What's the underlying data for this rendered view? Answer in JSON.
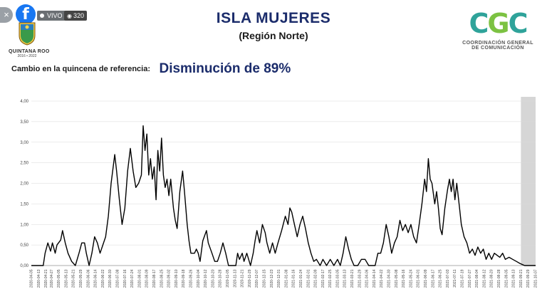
{
  "overlay": {
    "close_symbol": "×",
    "facebook_letter": "f",
    "live_label": "VIVO",
    "viewers": "320"
  },
  "logo_left": {
    "name": "QUINTANA ROO",
    "years": "2016 • 2022"
  },
  "header": {
    "title": "ISLA MUJERES",
    "subtitle": "(Región Norte)"
  },
  "logo_right": {
    "letters": [
      "C",
      "G",
      "C"
    ],
    "line1": "COORDINACIÓN GENERAL",
    "line2": "DE COMUNICACIÓN"
  },
  "change": {
    "label": "Cambio en la quincena de referencia:",
    "value": "Disminución de 89%"
  },
  "colors": {
    "title": "#1b2c6b",
    "line": "#000000",
    "grid": "#d9d9d9",
    "shade": "#d6d6d6",
    "facebook": "#1877f2"
  },
  "chart_data": {
    "type": "line",
    "title": "",
    "xlabel": "",
    "ylabel": "",
    "ylim": [
      0,
      4
    ],
    "y_ticks": [
      "0.00",
      "0.50",
      "1.00",
      "1.50",
      "2.00",
      "2.50",
      "3.00",
      "3.50",
      "4.00"
    ],
    "grid": "horizontal",
    "x_start": "2020-04-05",
    "x_end": "2021-10-07",
    "x_ticks": [
      "2020-04-05",
      "2020-04-13",
      "2020-04-21",
      "2020-04-27",
      "2020-05-05",
      "2020-05-13",
      "2020-05-21",
      "2020-05-29",
      "2020-06-06",
      "2020-06-14",
      "2020-06-22",
      "2020-06-30",
      "2020-07-08",
      "2020-07-16",
      "2020-07-24",
      "2020-08-01",
      "2020-08-09",
      "2020-08-17",
      "2020-08-25",
      "2020-09-02",
      "2020-09-10",
      "2020-09-18",
      "2020-09-26",
      "2020-10-04",
      "2020-10-12",
      "2020-10-20",
      "2020-10-28",
      "2020-11-05",
      "2020-11-13",
      "2020-11-21",
      "2020-11-29",
      "2020-12-07",
      "2020-12-15",
      "2020-12-23",
      "2020-12-31",
      "2021-01-08",
      "2021-01-16",
      "2021-01-24",
      "2021-02-01",
      "2021-02-09",
      "2021-02-17",
      "2021-02-25",
      "2021-03-05",
      "2021-03-13",
      "2021-03-21",
      "2021-03-29",
      "2021-04-06",
      "2021-04-14",
      "2021-04-22",
      "2021-04-30",
      "2021-05-08",
      "2021-05-16",
      "2021-05-24",
      "2021-06-01",
      "2021-06-09",
      "2021-06-17",
      "2021-06-25",
      "2021-07-03",
      "2021-07-11",
      "2021-07-19",
      "2021-07-27",
      "2021-08-04",
      "2021-08-12",
      "2021-08-20",
      "2021-08-28",
      "2021-09-05",
      "2021-09-13",
      "2021-09-21",
      "2021-09-29",
      "2021-10-07"
    ],
    "shaded_from": "2021-09-21",
    "shaded_to": "2021-10-07",
    "series": [
      {
        "points": [
          [
            "2020-04-05",
            0
          ],
          [
            "2020-04-18",
            0
          ],
          [
            "2020-04-20",
            0.3
          ],
          [
            "2020-04-23",
            0.55
          ],
          [
            "2020-04-26",
            0.35
          ],
          [
            "2020-04-28",
            0.55
          ],
          [
            "2020-05-01",
            0.3
          ],
          [
            "2020-05-03",
            0.5
          ],
          [
            "2020-05-07",
            0.62
          ],
          [
            "2020-05-09",
            0.85
          ],
          [
            "2020-05-12",
            0.55
          ],
          [
            "2020-05-15",
            0.3
          ],
          [
            "2020-05-19",
            0.1
          ],
          [
            "2020-05-23",
            0
          ],
          [
            "2020-05-27",
            0.3
          ],
          [
            "2020-05-30",
            0.55
          ],
          [
            "2020-06-02",
            0.55
          ],
          [
            "2020-06-04",
            0.3
          ],
          [
            "2020-06-07",
            0
          ],
          [
            "2020-06-10",
            0.3
          ],
          [
            "2020-06-13",
            0.7
          ],
          [
            "2020-06-16",
            0.55
          ],
          [
            "2020-06-19",
            0.3
          ],
          [
            "2020-06-22",
            0.5
          ],
          [
            "2020-06-25",
            0.7
          ],
          [
            "2020-06-28",
            1.2
          ],
          [
            "2020-07-01",
            2.0
          ],
          [
            "2020-07-05",
            2.7
          ],
          [
            "2020-07-07",
            2.3
          ],
          [
            "2020-07-10",
            1.6
          ],
          [
            "2020-07-13",
            1.0
          ],
          [
            "2020-07-16",
            1.4
          ],
          [
            "2020-07-19",
            2.3
          ],
          [
            "2020-07-22",
            2.85
          ],
          [
            "2020-07-25",
            2.3
          ],
          [
            "2020-07-28",
            1.9
          ],
          [
            "2020-07-31",
            2.0
          ],
          [
            "2020-08-03",
            2.2
          ],
          [
            "2020-08-05",
            3.4
          ],
          [
            "2020-08-07",
            2.8
          ],
          [
            "2020-08-09",
            3.2
          ],
          [
            "2020-08-11",
            2.2
          ],
          [
            "2020-08-13",
            2.6
          ],
          [
            "2020-08-15",
            2.1
          ],
          [
            "2020-08-17",
            2.4
          ],
          [
            "2020-08-19",
            1.6
          ],
          [
            "2020-08-21",
            2.8
          ],
          [
            "2020-08-23",
            2.3
          ],
          [
            "2020-08-25",
            3.1
          ],
          [
            "2020-08-27",
            2.2
          ],
          [
            "2020-08-29",
            1.9
          ],
          [
            "2020-08-31",
            2.1
          ],
          [
            "2020-09-02",
            1.7
          ],
          [
            "2020-09-04",
            2.1
          ],
          [
            "2020-09-07",
            1.4
          ],
          [
            "2020-09-09",
            1.1
          ],
          [
            "2020-09-11",
            0.9
          ],
          [
            "2020-09-14",
            1.8
          ],
          [
            "2020-09-17",
            2.3
          ],
          [
            "2020-09-19",
            1.8
          ],
          [
            "2020-09-22",
            1.0
          ],
          [
            "2020-09-24",
            0.6
          ],
          [
            "2020-09-26",
            0.3
          ],
          [
            "2020-09-30",
            0.3
          ],
          [
            "2020-10-02",
            0.4
          ],
          [
            "2020-10-04",
            0.3
          ],
          [
            "2020-10-06",
            0.1
          ],
          [
            "2020-10-09",
            0.6
          ],
          [
            "2020-10-13",
            0.85
          ],
          [
            "2020-10-15",
            0.55
          ],
          [
            "2020-10-19",
            0.3
          ],
          [
            "2020-10-22",
            0.1
          ],
          [
            "2020-10-25",
            0.1
          ],
          [
            "2020-10-28",
            0.3
          ],
          [
            "2020-10-31",
            0.55
          ],
          [
            "2020-11-03",
            0.3
          ],
          [
            "2020-11-06",
            0
          ],
          [
            "2020-11-14",
            0
          ],
          [
            "2020-11-16",
            0.3
          ],
          [
            "2020-11-18",
            0.15
          ],
          [
            "2020-11-21",
            0.3
          ],
          [
            "2020-11-23",
            0.1
          ],
          [
            "2020-11-26",
            0.3
          ],
          [
            "2020-11-30",
            0
          ],
          [
            "2020-12-03",
            0.3
          ],
          [
            "2020-12-05",
            0.6
          ],
          [
            "2020-12-07",
            0.85
          ],
          [
            "2020-12-10",
            0.55
          ],
          [
            "2020-12-13",
            1.0
          ],
          [
            "2020-12-16",
            0.8
          ],
          [
            "2020-12-18",
            0.55
          ],
          [
            "2020-12-21",
            0.3
          ],
          [
            "2020-12-24",
            0.55
          ],
          [
            "2020-12-27",
            0.3
          ],
          [
            "2020-12-30",
            0.55
          ],
          [
            "2021-01-03",
            0.85
          ],
          [
            "2021-01-07",
            1.2
          ],
          [
            "2021-01-10",
            1.0
          ],
          [
            "2021-01-12",
            1.4
          ],
          [
            "2021-01-14",
            1.3
          ],
          [
            "2021-01-17",
            1.0
          ],
          [
            "2021-01-20",
            0.7
          ],
          [
            "2021-01-23",
            1.0
          ],
          [
            "2021-01-26",
            1.2
          ],
          [
            "2021-01-29",
            0.9
          ],
          [
            "2021-02-01",
            0.55
          ],
          [
            "2021-02-04",
            0.3
          ],
          [
            "2021-02-07",
            0.1
          ],
          [
            "2021-02-10",
            0.15
          ],
          [
            "2021-02-14",
            0
          ],
          [
            "2021-02-17",
            0.15
          ],
          [
            "2021-02-21",
            0
          ],
          [
            "2021-02-25",
            0.15
          ],
          [
            "2021-03-01",
            0
          ],
          [
            "2021-03-05",
            0.15
          ],
          [
            "2021-03-08",
            0
          ],
          [
            "2021-03-11",
            0.3
          ],
          [
            "2021-03-14",
            0.7
          ],
          [
            "2021-03-17",
            0.4
          ],
          [
            "2021-03-20",
            0.15
          ],
          [
            "2021-03-23",
            0
          ],
          [
            "2021-03-27",
            0
          ],
          [
            "2021-03-31",
            0.15
          ],
          [
            "2021-04-04",
            0.15
          ],
          [
            "2021-04-08",
            0
          ],
          [
            "2021-04-15",
            0
          ],
          [
            "2021-04-18",
            0.3
          ],
          [
            "2021-04-21",
            0.3
          ],
          [
            "2021-04-24",
            0.55
          ],
          [
            "2021-04-27",
            1.0
          ],
          [
            "2021-04-30",
            0.7
          ],
          [
            "2021-05-03",
            0.3
          ],
          [
            "2021-05-06",
            0.55
          ],
          [
            "2021-05-09",
            0.7
          ],
          [
            "2021-05-12",
            1.1
          ],
          [
            "2021-05-15",
            0.85
          ],
          [
            "2021-05-18",
            1.0
          ],
          [
            "2021-05-21",
            0.8
          ],
          [
            "2021-05-24",
            1.0
          ],
          [
            "2021-05-27",
            0.7
          ],
          [
            "2021-05-30",
            0.55
          ],
          [
            "2021-06-02",
            1.0
          ],
          [
            "2021-06-05",
            1.5
          ],
          [
            "2021-06-08",
            2.1
          ],
          [
            "2021-06-10",
            1.8
          ],
          [
            "2021-06-12",
            2.6
          ],
          [
            "2021-06-14",
            2.1
          ],
          [
            "2021-06-16",
            2.0
          ],
          [
            "2021-06-19",
            1.5
          ],
          [
            "2021-06-21",
            1.8
          ],
          [
            "2021-06-23",
            1.4
          ],
          [
            "2021-06-25",
            0.9
          ],
          [
            "2021-06-27",
            0.75
          ],
          [
            "2021-06-30",
            1.4
          ],
          [
            "2021-07-03",
            1.85
          ],
          [
            "2021-07-05",
            2.1
          ],
          [
            "2021-07-07",
            1.8
          ],
          [
            "2021-07-09",
            2.1
          ],
          [
            "2021-07-11",
            1.6
          ],
          [
            "2021-07-13",
            2.0
          ],
          [
            "2021-07-16",
            1.4
          ],
          [
            "2021-07-18",
            1.0
          ],
          [
            "2021-07-21",
            0.7
          ],
          [
            "2021-07-24",
            0.55
          ],
          [
            "2021-07-27",
            0.3
          ],
          [
            "2021-07-30",
            0.4
          ],
          [
            "2021-08-02",
            0.25
          ],
          [
            "2021-08-05",
            0.45
          ],
          [
            "2021-08-08",
            0.3
          ],
          [
            "2021-08-11",
            0.4
          ],
          [
            "2021-08-14",
            0.15
          ],
          [
            "2021-08-17",
            0.3
          ],
          [
            "2021-08-20",
            0.15
          ],
          [
            "2021-08-23",
            0.3
          ],
          [
            "2021-08-26",
            0.25
          ],
          [
            "2021-08-29",
            0.2
          ],
          [
            "2021-09-01",
            0.3
          ],
          [
            "2021-09-04",
            0.15
          ],
          [
            "2021-09-08",
            0.2
          ],
          [
            "2021-09-12",
            0.15
          ],
          [
            "2021-09-16",
            0.1
          ],
          [
            "2021-09-20",
            0.05
          ],
          [
            "2021-09-25",
            0
          ],
          [
            "2021-10-07",
            0
          ]
        ]
      }
    ]
  }
}
